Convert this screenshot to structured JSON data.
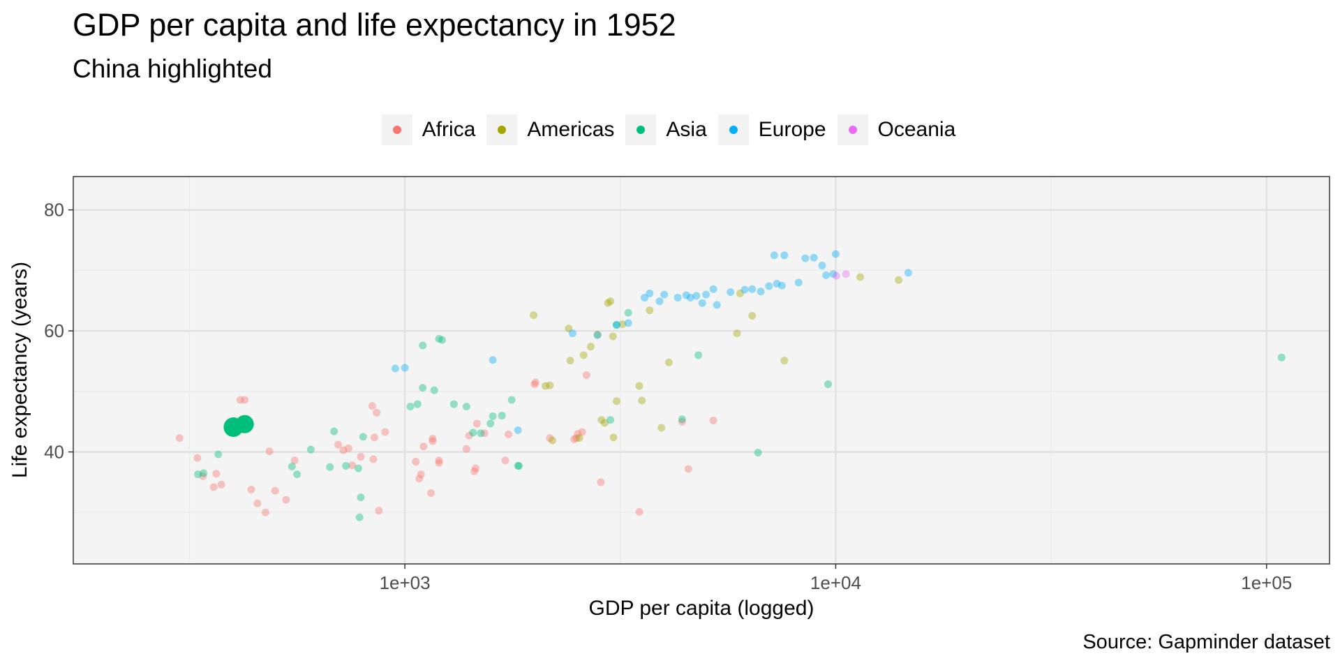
{
  "chart_data": {
    "type": "scatter",
    "title": "GDP per capita and life expectancy in 1952",
    "subtitle": "China highlighted",
    "caption": "Source: Gapminder dataset",
    "xlabel": "GDP per capita (logged)",
    "ylabel": "Life expectancy (years)",
    "x_scale": "log10",
    "xlim": [
      170,
      140000
    ],
    "ylim": [
      21.5,
      85.5
    ],
    "x_ticks": [
      1000,
      10000,
      100000
    ],
    "x_tick_labels": [
      "1e+03",
      "1e+04",
      "1e+05"
    ],
    "y_ticks": [
      40,
      60,
      80
    ],
    "y_tick_labels": [
      "40",
      "60",
      "80"
    ],
    "grid": true,
    "legend_position": "top",
    "highlight": "China",
    "legend": [
      {
        "name": "Africa",
        "color": "#F8766D"
      },
      {
        "name": "Americas",
        "color": "#A3A500"
      },
      {
        "name": "Asia",
        "color": "#00BF7D"
      },
      {
        "name": "Europe",
        "color": "#00B0F6"
      },
      {
        "name": "Oceania",
        "color": "#E76BF3"
      }
    ],
    "series": [
      {
        "name": "Africa",
        "color": "#F8766D",
        "points": [
          [
            300,
            42.3
          ],
          [
            330,
            39.0
          ],
          [
            340,
            36.0
          ],
          [
            360,
            34.2
          ],
          [
            365,
            36.4
          ],
          [
            375,
            34.6
          ],
          [
            415,
            48.6
          ],
          [
            425,
            48.6
          ],
          [
            440,
            33.8
          ],
          [
            455,
            31.5
          ],
          [
            475,
            30.0
          ],
          [
            485,
            40.1
          ],
          [
            500,
            33.6
          ],
          [
            530,
            32.1
          ],
          [
            555,
            38.6
          ],
          [
            700,
            41.2
          ],
          [
            720,
            40.3
          ],
          [
            740,
            40.6
          ],
          [
            755,
            37.8
          ],
          [
            790,
            39.2
          ],
          [
            840,
            47.6
          ],
          [
            845,
            38.8
          ],
          [
            850,
            42.4
          ],
          [
            860,
            46.5
          ],
          [
            870,
            30.3
          ],
          [
            900,
            43.3
          ],
          [
            1060,
            38.4
          ],
          [
            1080,
            35.6
          ],
          [
            1090,
            36.3
          ],
          [
            1105,
            40.9
          ],
          [
            1150,
            33.2
          ],
          [
            1160,
            41.8
          ],
          [
            1160,
            42.2
          ],
          [
            1200,
            38.6
          ],
          [
            1200,
            38.2
          ],
          [
            1390,
            40.5
          ],
          [
            1410,
            42.7
          ],
          [
            1450,
            36.8
          ],
          [
            1460,
            37.3
          ],
          [
            1470,
            44.7
          ],
          [
            1530,
            43.1
          ],
          [
            1710,
            38.6
          ],
          [
            1740,
            42.9
          ],
          [
            2000,
            51.2
          ],
          [
            2010,
            51.5
          ],
          [
            2170,
            42.3
          ],
          [
            2470,
            42.1
          ],
          [
            2500,
            42.3
          ],
          [
            2520,
            43.0
          ],
          [
            2580,
            43.3
          ],
          [
            2640,
            52.7
          ],
          [
            2850,
            35.0
          ],
          [
            3500,
            30.1
          ],
          [
            4400,
            45.0
          ],
          [
            4550,
            37.2
          ],
          [
            5200,
            45.2
          ]
        ]
      },
      {
        "name": "Americas",
        "color": "#A3A500",
        "points": [
          [
            1990,
            62.6
          ],
          [
            2120,
            50.9
          ],
          [
            2170,
            51.0
          ],
          [
            2200,
            41.9
          ],
          [
            2400,
            60.4
          ],
          [
            2420,
            55.1
          ],
          [
            2540,
            42.3
          ],
          [
            2600,
            56.0
          ],
          [
            2700,
            57.4
          ],
          [
            2800,
            59.4
          ],
          [
            2860,
            45.3
          ],
          [
            2910,
            44.8
          ],
          [
            2960,
            64.6
          ],
          [
            3000,
            64.9
          ],
          [
            3040,
            59.1
          ],
          [
            3050,
            42.4
          ],
          [
            3100,
            48.4
          ],
          [
            3200,
            61.1
          ],
          [
            3500,
            50.9
          ],
          [
            3550,
            48.5
          ],
          [
            3700,
            63.4
          ],
          [
            3940,
            44.0
          ],
          [
            4100,
            54.8
          ],
          [
            5900,
            59.6
          ],
          [
            6000,
            66.2
          ],
          [
            6400,
            62.5
          ],
          [
            7600,
            55.1
          ],
          [
            11400,
            68.9
          ],
          [
            13990,
            68.4
          ]
        ]
      },
      {
        "name": "Asia",
        "color": "#00BF7D",
        "points": [
          [
            331,
            36.3
          ],
          [
            341,
            36.5
          ],
          [
            369,
            39.6
          ],
          [
            400,
            44.1
          ],
          [
            430,
            44.5
          ],
          [
            547,
            37.6
          ],
          [
            562,
            36.3
          ],
          [
            605,
            40.4
          ],
          [
            670,
            37.5
          ],
          [
            685,
            43.4
          ],
          [
            730,
            37.7
          ],
          [
            780,
            37.3
          ],
          [
            785,
            29.2
          ],
          [
            790,
            32.5
          ],
          [
            800,
            42.5
          ],
          [
            1030,
            47.5
          ],
          [
            1070,
            47.9
          ],
          [
            1100,
            57.6
          ],
          [
            1100,
            50.6
          ],
          [
            1170,
            50.2
          ],
          [
            1200,
            58.7
          ],
          [
            1220,
            58.5
          ],
          [
            1300,
            47.9
          ],
          [
            1390,
            47.5
          ],
          [
            1440,
            43.2
          ],
          [
            1500,
            43.1
          ],
          [
            1580,
            44.7
          ],
          [
            1600,
            45.9
          ],
          [
            1680,
            46.0
          ],
          [
            1770,
            48.6
          ],
          [
            1830,
            37.7
          ],
          [
            1840,
            37.7
          ],
          [
            3000,
            45.3
          ],
          [
            3100,
            61.0
          ],
          [
            3300,
            63.0
          ],
          [
            4400,
            45.4
          ],
          [
            4800,
            56.0
          ],
          [
            6600,
            39.9
          ],
          [
            9600,
            51.2
          ],
          [
            108382,
            55.6
          ]
        ]
      },
      {
        "name": "Europe",
        "color": "#00B0F6",
        "points": [
          [
            950,
            53.8
          ],
          [
            1000,
            53.9
          ],
          [
            1600,
            55.2
          ],
          [
            1830,
            43.6
          ],
          [
            2450,
            59.6
          ],
          [
            2800,
            59.3
          ],
          [
            3100,
            61.0
          ],
          [
            3300,
            61.3
          ],
          [
            3600,
            65.5
          ],
          [
            3700,
            66.2
          ],
          [
            3900,
            64.9
          ],
          [
            4000,
            66.0
          ],
          [
            4300,
            65.5
          ],
          [
            4500,
            65.9
          ],
          [
            4600,
            65.5
          ],
          [
            4750,
            65.8
          ],
          [
            4900,
            64.6
          ],
          [
            5000,
            66.0
          ],
          [
            5200,
            66.9
          ],
          [
            5300,
            64.3
          ],
          [
            5700,
            66.4
          ],
          [
            6150,
            66.8
          ],
          [
            6400,
            66.9
          ],
          [
            6700,
            66.5
          ],
          [
            7000,
            67.4
          ],
          [
            7300,
            67.8
          ],
          [
            7500,
            67.5
          ],
          [
            7200,
            72.5
          ],
          [
            7600,
            72.5
          ],
          [
            8200,
            68.0
          ],
          [
            8500,
            72.0
          ],
          [
            8900,
            72.1
          ],
          [
            9300,
            70.8
          ],
          [
            9500,
            69.2
          ],
          [
            9870,
            69.4
          ],
          [
            10000,
            72.7
          ],
          [
            14734,
            69.6
          ]
        ]
      },
      {
        "name": "Oceania",
        "color": "#E76BF3",
        "points": [
          [
            10040,
            69.1
          ],
          [
            10560,
            69.4
          ]
        ]
      }
    ]
  }
}
